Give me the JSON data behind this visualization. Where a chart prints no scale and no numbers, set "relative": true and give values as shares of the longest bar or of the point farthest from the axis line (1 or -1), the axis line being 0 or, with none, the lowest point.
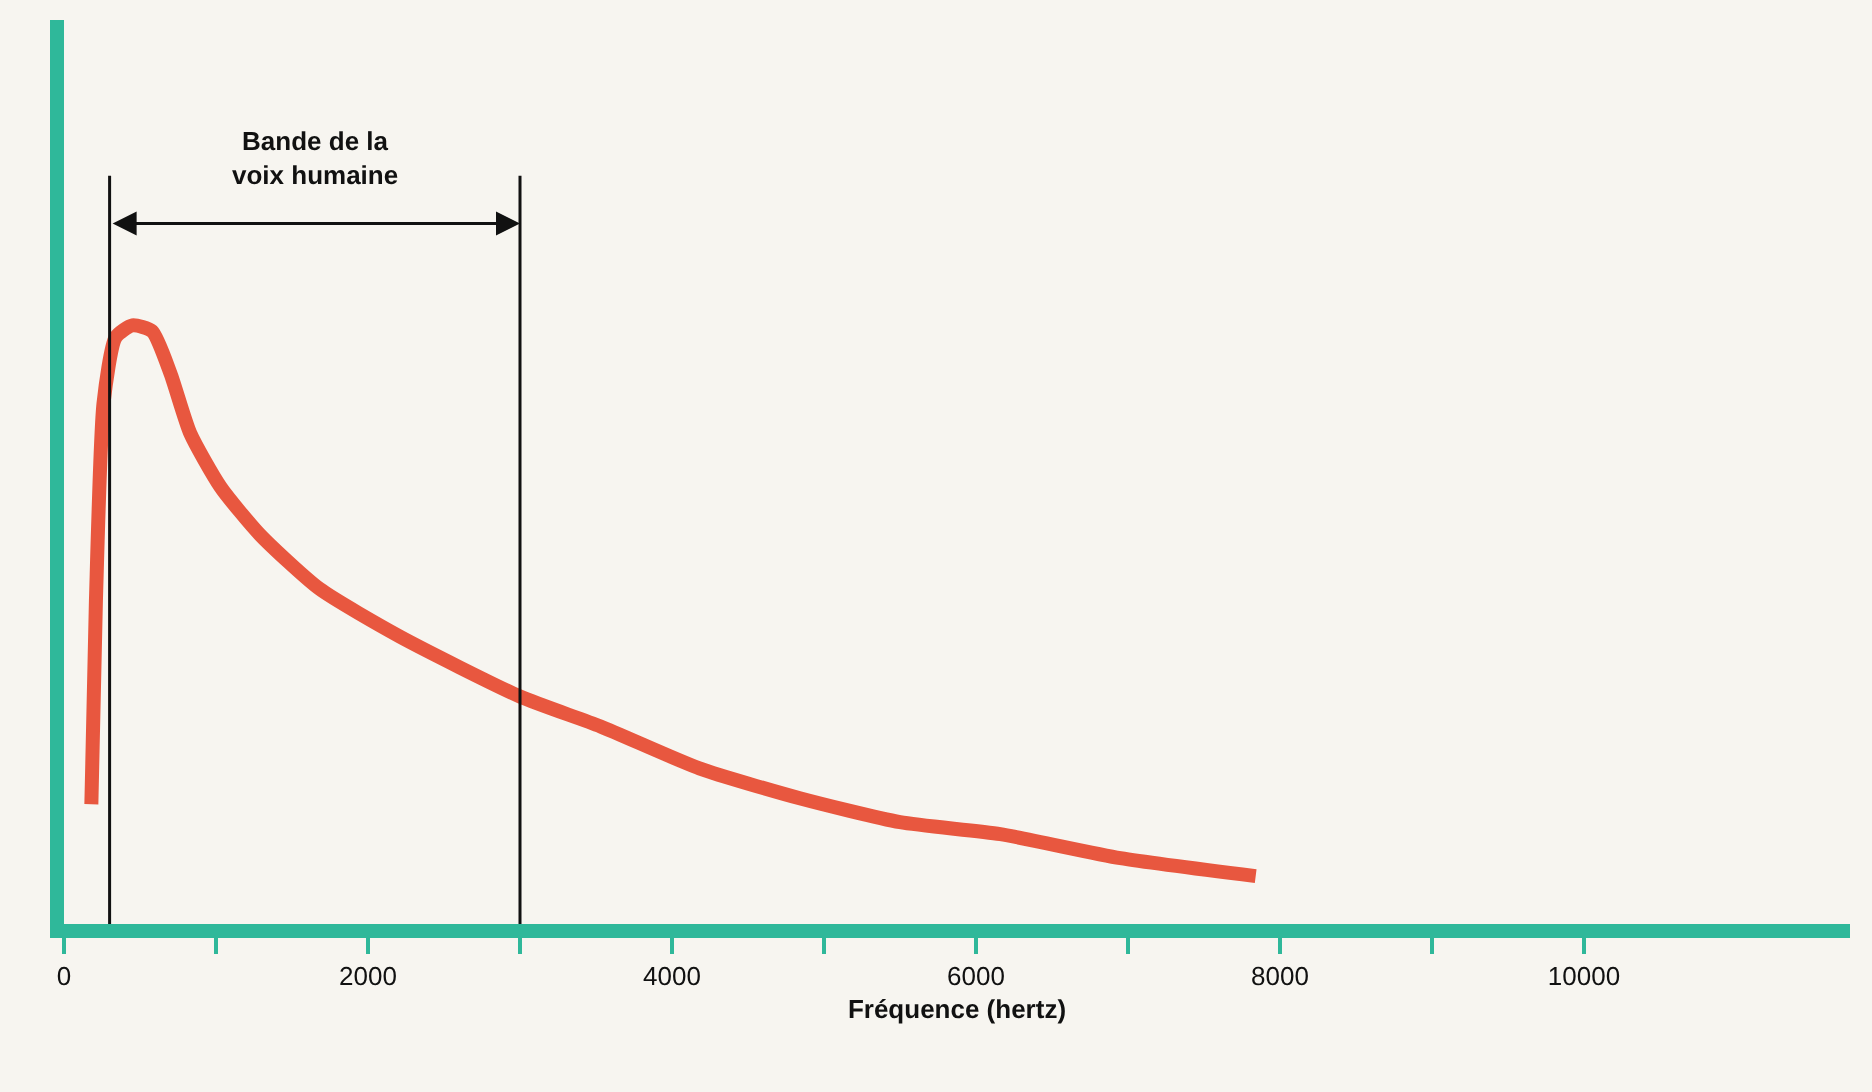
{
  "chart_data": {
    "type": "line",
    "relative": true,
    "xlabel": "Fréquence (hertz)",
    "xlim": [
      0,
      11750
    ],
    "xticks": [
      0,
      {
        "value": 1000,
        "label": null
      },
      2000,
      {
        "value": 3000,
        "label": null
      },
      4000,
      {
        "value": 5000,
        "label": null
      },
      6000,
      {
        "value": 7000,
        "label": null
      },
      8000,
      {
        "value": 9000,
        "label": null
      },
      10000
    ],
    "x": [
      180,
      210,
      260,
      340,
      450,
      580,
      700,
      830,
      1030,
      1290,
      1680,
      2210,
      3000,
      3530,
      4180,
      4840,
      5500,
      6160,
      6950,
      7840
    ],
    "series": [
      {
        "color": "#e8573f",
        "values": [
          0.2,
          0.54,
          0.87,
          0.98,
          1.0,
          0.99,
          0.92,
          0.82,
          0.73,
          0.65,
          0.56,
          0.48,
          0.38,
          0.33,
          0.26,
          0.21,
          0.17,
          0.15,
          0.11,
          0.08
        ]
      }
    ],
    "ref_lines": [
      {
        "axis": "x",
        "value": 300,
        "color": "#111111"
      },
      {
        "axis": "x",
        "value": 3000,
        "color": "#111111"
      }
    ],
    "annotations": [
      "Bande de la\nvoix humaine"
    ],
    "grid": false,
    "tick_labels": "x",
    "marker": "none",
    "line_style": "solid"
  }
}
